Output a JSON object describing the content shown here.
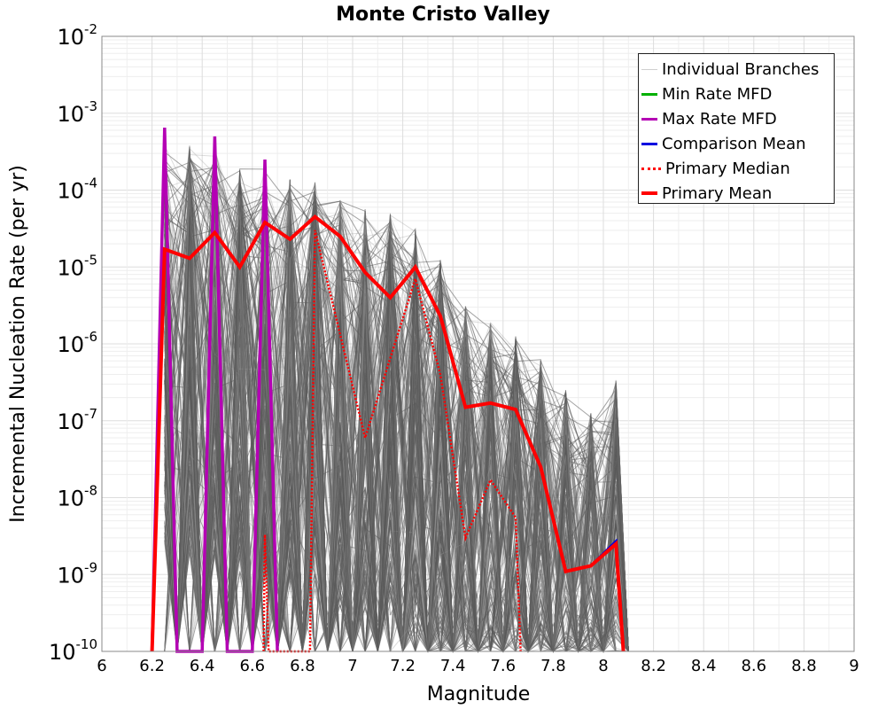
{
  "chart_data": {
    "type": "line",
    "title": "Monte Cristo Valley",
    "xlabel": "Magnitude",
    "ylabel": "Incremental Nucleation Rate (per yr)",
    "xlim": [
      6,
      9
    ],
    "ylim_exponent": [
      -10,
      -2
    ],
    "y_scale": "log",
    "grid": true,
    "legend_position": "top-right",
    "x_ticks": [
      "6",
      "6.2",
      "6.4",
      "6.6",
      "6.8",
      "7",
      "7.2",
      "7.4",
      "7.6",
      "7.8",
      "8",
      "8.2",
      "8.4",
      "8.6",
      "8.8",
      "9"
    ],
    "y_tick_exponents": [
      "-10",
      "-9",
      "-8",
      "-7",
      "-6",
      "-5",
      "-4",
      "-3",
      "-2"
    ],
    "y_tick_base": "10",
    "legend": [
      {
        "key": "branches",
        "label": "Individual Branches",
        "color": "#cfcfcf"
      },
      {
        "key": "min",
        "label": "Min Rate MFD",
        "color": "#00b000"
      },
      {
        "key": "max",
        "label": "Max Rate MFD",
        "color": "#b400b4"
      },
      {
        "key": "comparison",
        "label": "Comparison Mean",
        "color": "#0000e0"
      },
      {
        "key": "median",
        "label": "Primary Median",
        "color": "#ff0000"
      },
      {
        "key": "mean",
        "label": "Primary Mean",
        "color": "#ff0000"
      }
    ],
    "branch_peak_values": [
      {
        "x": 6.25,
        "y": 0.00065
      },
      {
        "x": 6.35,
        "y": 0.0006
      },
      {
        "x": 6.45,
        "y": 0.00055
      },
      {
        "x": 6.55,
        "y": 0.0003
      },
      {
        "x": 6.65,
        "y": 0.0003
      },
      {
        "x": 6.75,
        "y": 0.00022
      },
      {
        "x": 6.85,
        "y": 0.0002
      },
      {
        "x": 6.95,
        "y": 0.00012
      },
      {
        "x": 7.05,
        "y": 9e-05
      },
      {
        "x": 7.15,
        "y": 8e-05
      },
      {
        "x": 7.25,
        "y": 5e-05
      },
      {
        "x": 7.35,
        "y": 2e-05
      },
      {
        "x": 7.45,
        "y": 5e-06
      },
      {
        "x": 7.55,
        "y": 3e-06
      },
      {
        "x": 7.65,
        "y": 2e-06
      },
      {
        "x": 7.75,
        "y": 1e-06
      },
      {
        "x": 7.85,
        "y": 4e-07
      },
      {
        "x": 7.95,
        "y": 2e-07
      },
      {
        "x": 8.05,
        "y": 5.5e-07
      }
    ],
    "series": [
      {
        "key": "max",
        "name": "Max Rate MFD",
        "x": [
          6.2,
          6.25,
          6.3,
          6.4,
          6.45,
          6.5,
          6.6,
          6.65,
          6.7
        ],
        "y": [
          1e-10,
          0.00065,
          1e-10,
          1e-10,
          0.0005,
          1e-10,
          1e-10,
          0.00025,
          1e-10
        ]
      },
      {
        "key": "min",
        "name": "Min Rate MFD",
        "x": [
          6.25,
          6.25
        ],
        "y": [
          1e-10,
          1e-10
        ]
      },
      {
        "key": "comparison",
        "name": "Comparison Mean",
        "x": [
          6.2,
          6.25,
          6.35,
          6.45,
          6.55,
          6.65,
          6.75,
          6.85,
          6.95,
          7.05,
          7.15,
          7.25,
          7.35,
          7.45,
          7.55,
          7.65,
          7.75,
          7.85,
          7.95,
          8.05,
          8.08
        ],
        "y": [
          1e-10,
          1.7e-05,
          1.3e-05,
          2.8e-05,
          1e-05,
          3.8e-05,
          2.3e-05,
          4.5e-05,
          2.5e-05,
          8.5e-06,
          4e-06,
          1e-05,
          2.3e-06,
          1.5e-07,
          1.7e-07,
          1.4e-07,
          2.5e-08,
          1.1e-09,
          1.3e-09,
          2.7e-09,
          1e-10
        ]
      },
      {
        "key": "median",
        "name": "Primary Median",
        "x": [
          6.645,
          6.65,
          6.665,
          6.83,
          6.85,
          7.05,
          7.25,
          7.35,
          7.45,
          7.55,
          7.65,
          7.67
        ],
        "y": [
          1e-10,
          3.3e-09,
          1e-10,
          1e-10,
          3e-05,
          6e-08,
          7e-06,
          4e-07,
          3e-09,
          1.7e-08,
          5.5e-09,
          1e-10
        ]
      },
      {
        "key": "mean",
        "name": "Primary Mean",
        "x": [
          6.2,
          6.25,
          6.35,
          6.45,
          6.55,
          6.65,
          6.75,
          6.85,
          6.95,
          7.05,
          7.15,
          7.25,
          7.35,
          7.45,
          7.55,
          7.65,
          7.75,
          7.85,
          7.95,
          8.05,
          8.08
        ],
        "y": [
          1e-10,
          1.7e-05,
          1.3e-05,
          2.8e-05,
          1e-05,
          3.8e-05,
          2.3e-05,
          4.5e-05,
          2.5e-05,
          8.5e-06,
          4e-06,
          1e-05,
          2.3e-06,
          1.5e-07,
          1.7e-07,
          1.4e-07,
          2.5e-08,
          1.1e-09,
          1.3e-09,
          2.5e-09,
          1e-10
        ]
      }
    ]
  }
}
